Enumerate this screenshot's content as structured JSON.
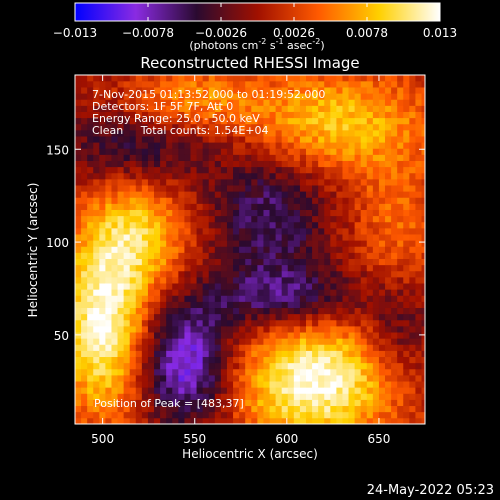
{
  "chart_data": {
    "type": "heatmap",
    "title": "Reconstructed RHESSI Image",
    "xlabel": "Heliocentric X (arcsec)",
    "ylabel": "Heliocentric Y (arcsec)",
    "xlim": [
      485,
      675
    ],
    "ylim": [
      2,
      190
    ],
    "xticks": [
      500,
      550,
      600,
      650
    ],
    "yticks": [
      50,
      100,
      150
    ],
    "colorbar": {
      "min": -0.013,
      "max": 0.013,
      "tick_labels": [
        "-0.013",
        "-0.0078",
        "-0.0026",
        "0.0026",
        "0.0078",
        "0.013"
      ],
      "unit_text": "(photons cm",
      "unit_exp1": "-2",
      "unit_mid": " s",
      "unit_exp2": "-1",
      "unit_mid2": " asec",
      "unit_exp3": "-2",
      "unit_end": ")",
      "colors": [
        "#0000ff",
        "#8a2be2",
        "#2a0a30",
        "#a01000",
        "#ff5a00",
        "#ffd000",
        "#ffffff"
      ]
    },
    "annotations": [
      "7-Nov-2015 01:13:52.000 to 01:19:52.000",
      "Detectors: 1F 5F 7F, Att 0",
      "Energy Range: 25.0 - 50.0 keV",
      "Clean     Total counts: 1.54E+04"
    ],
    "peak_label": "Position of Peak = [483,37]",
    "peak_position": [
      483,
      37
    ],
    "features": [
      {
        "x": 500,
        "y": 55,
        "amp": 0.0125,
        "sx": 18,
        "sy": 35
      },
      {
        "x": 520,
        "y": 105,
        "amp": 0.008,
        "sx": 20,
        "sy": 22
      },
      {
        "x": 615,
        "y": 25,
        "amp": 0.0128,
        "sx": 32,
        "sy": 24
      },
      {
        "x": 625,
        "y": 165,
        "amp": 0.0085,
        "sx": 40,
        "sy": 20
      },
      {
        "x": 545,
        "y": 178,
        "amp": 0.0055,
        "sx": 25,
        "sy": 12
      },
      {
        "x": 660,
        "y": 110,
        "amp": 0.0045,
        "sx": 18,
        "sy": 25
      },
      {
        "x": 545,
        "y": 35,
        "amp": -0.0105,
        "sx": 18,
        "sy": 22
      },
      {
        "x": 590,
        "y": 115,
        "amp": -0.006,
        "sx": 22,
        "sy": 26
      },
      {
        "x": 520,
        "y": 150,
        "amp": -0.005,
        "sx": 30,
        "sy": 15
      },
      {
        "x": 600,
        "y": 70,
        "amp": -0.0065,
        "sx": 30,
        "sy": 12
      },
      {
        "x": 660,
        "y": 50,
        "amp": -0.004,
        "sx": 14,
        "sy": 18
      }
    ]
  },
  "footer": {
    "timestamp": "24-May-2022 05:23"
  }
}
